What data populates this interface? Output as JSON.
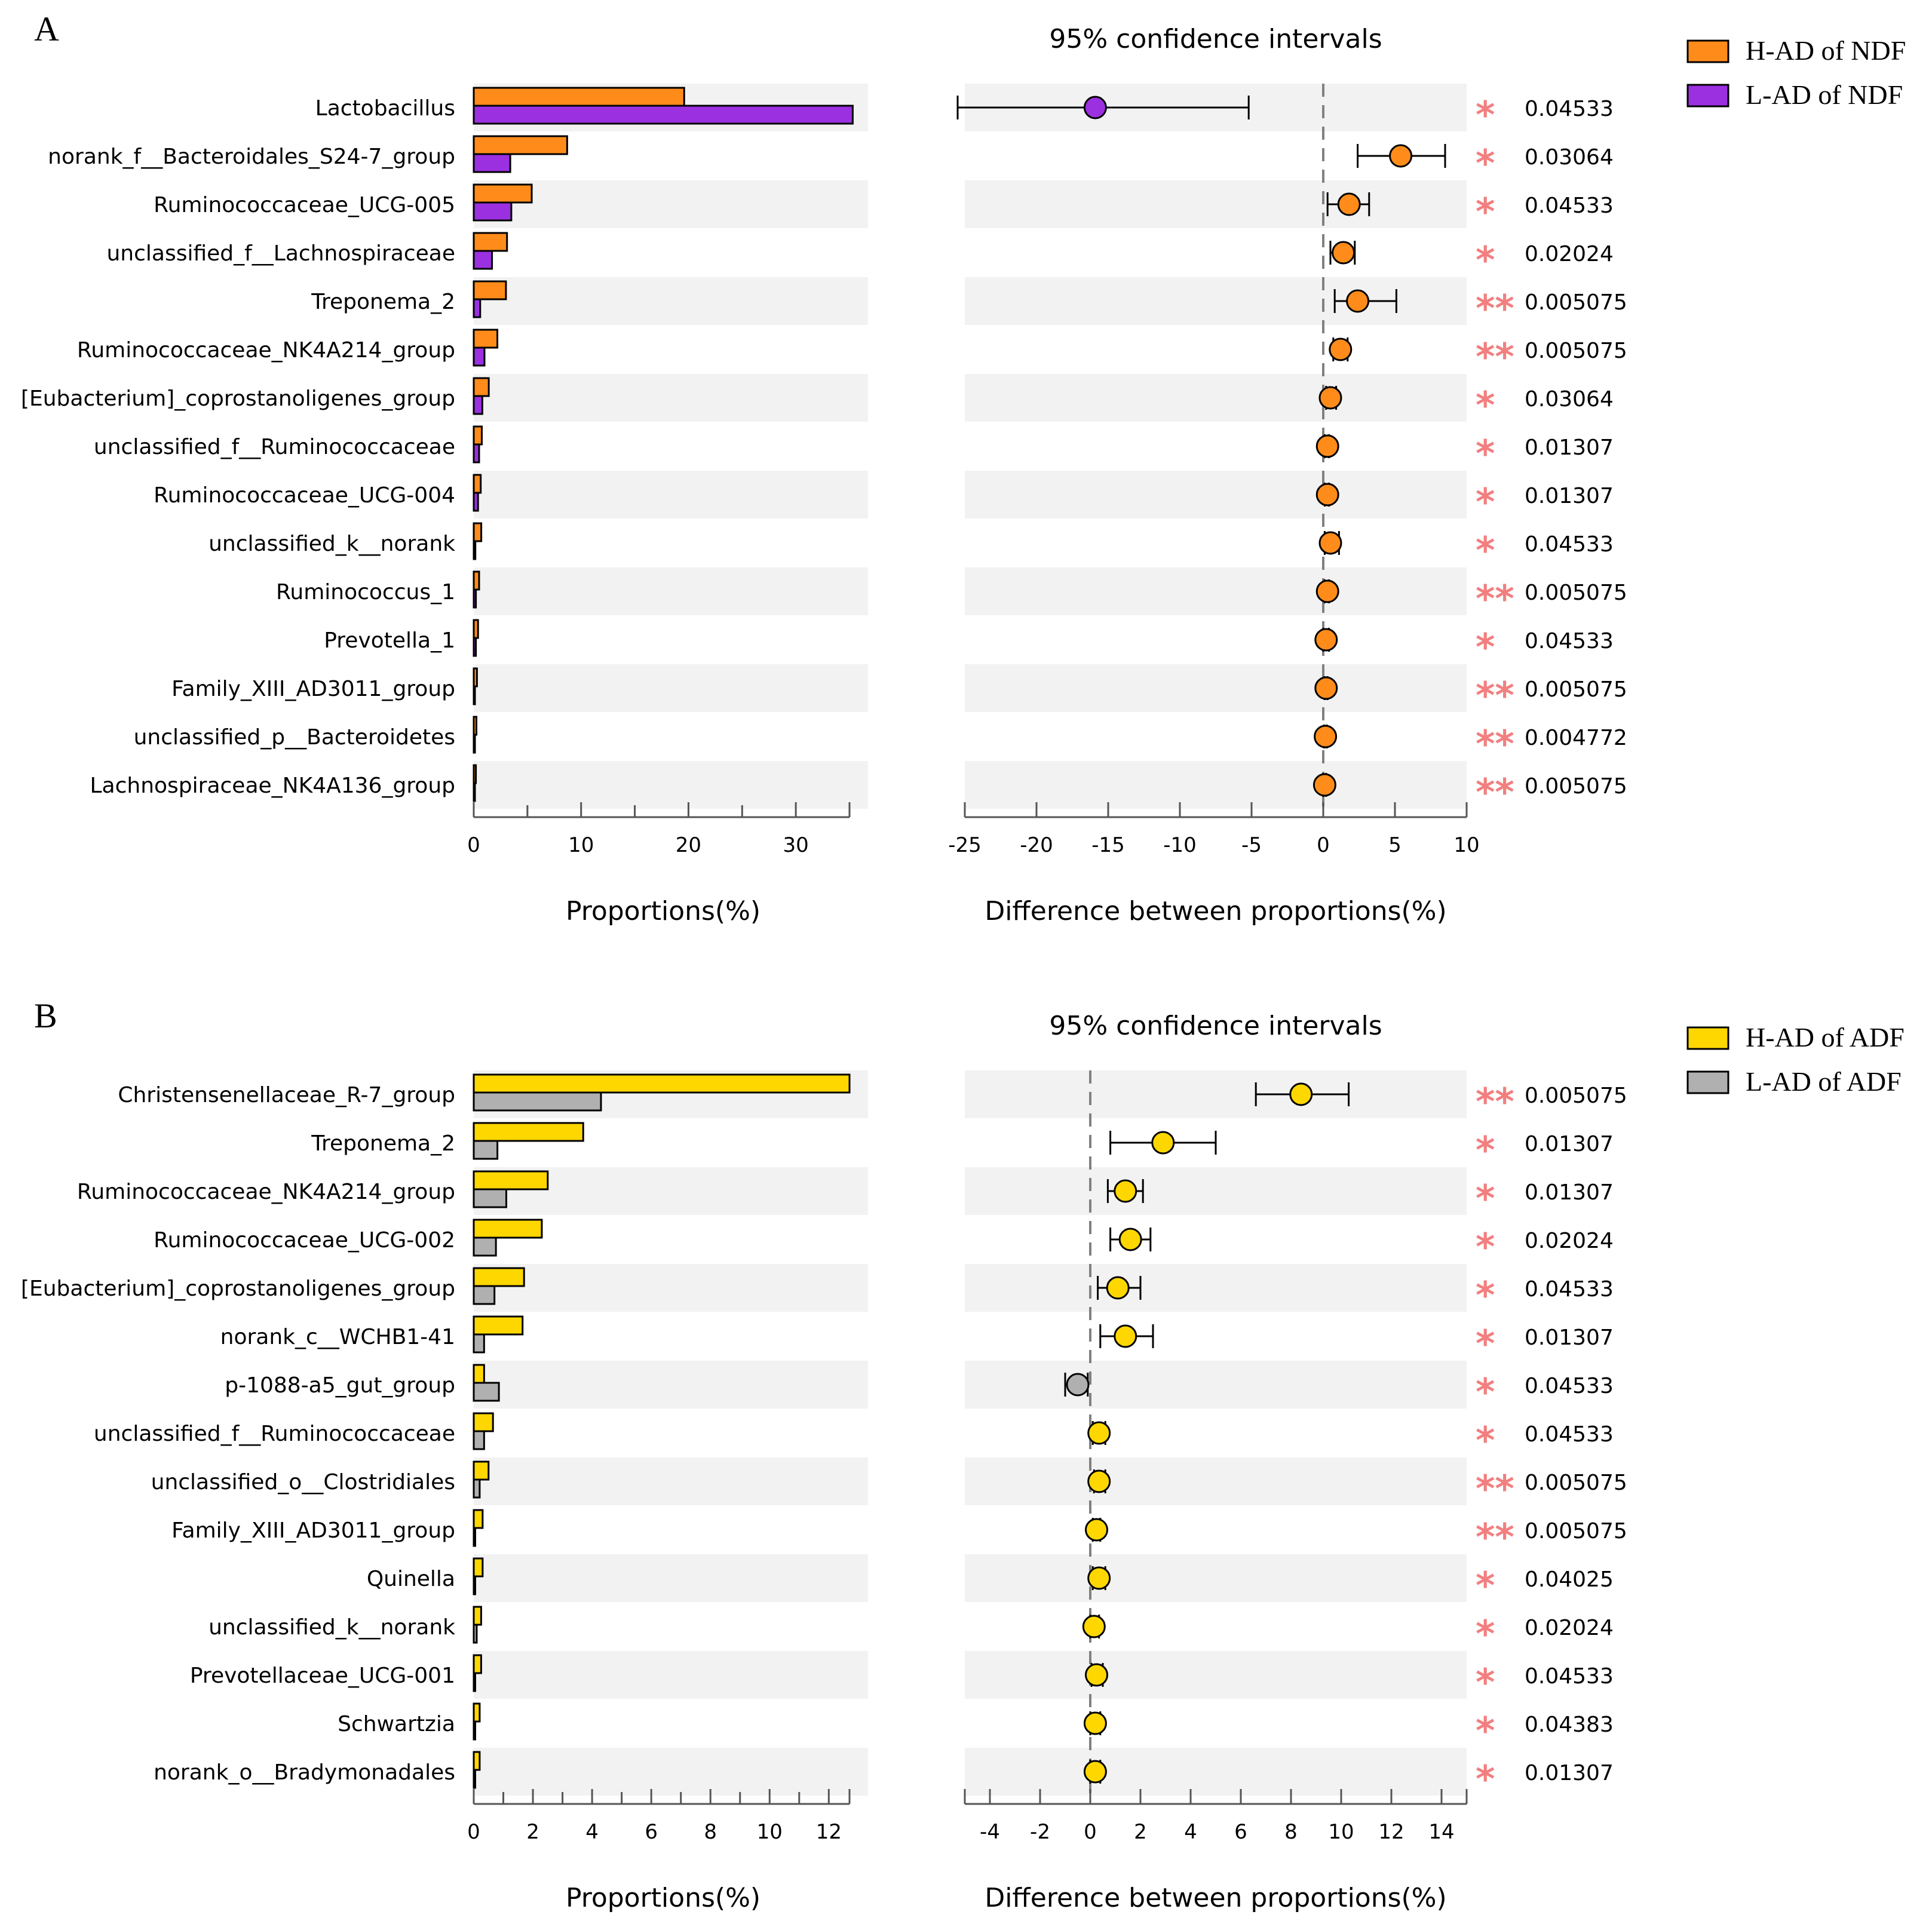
{
  "chart_data": [
    {
      "type": "bar+errorbar",
      "panel_label": "A",
      "title": "95% confidence intervals",
      "bar_xlabel": "Proportions(%)",
      "diff_xlabel": "Difference between proportions(%)",
      "bar_xlim": [
        0,
        35
      ],
      "bar_ticks": [
        0,
        10,
        20,
        30
      ],
      "diff_xlim": [
        -25,
        10
      ],
      "diff_ticks": [
        -25,
        -20,
        -15,
        -10,
        -5,
        0,
        5,
        10
      ],
      "legend": [
        {
          "label": "H-AD of NDF",
          "color": "#FF8C1A"
        },
        {
          "label": "L-AD of NDF",
          "color": "#9B30E0"
        }
      ],
      "categories": [
        "Lactobacillus",
        "norank_f__Bacteroidales_S24-7_group",
        "Ruminococcaceae_UCG-005",
        "unclassified_f__Lachnospiraceae",
        "Treponema_2",
        "Ruminococcaceae_NK4A214_group",
        "[Eubacterium]_coprostanoligenes_group",
        "unclassified_f__Ruminococcaceae",
        "Ruminococcaceae_UCG-004",
        "unclassified_k__norank",
        "Ruminococcus_1",
        "Prevotella_1",
        "Family_XIII_AD3011_group",
        "unclassified_p__Bacteroidetes",
        "Lachnospiraceae_NK4A136_group"
      ],
      "series": [
        {
          "name": "H-AD of NDF",
          "values": [
            19.6,
            8.7,
            5.4,
            3.1,
            3.0,
            2.2,
            1.4,
            0.75,
            0.65,
            0.7,
            0.5,
            0.4,
            0.3,
            0.25,
            0.2
          ]
        },
        {
          "name": "L-AD of NDF",
          "values": [
            35.3,
            3.4,
            3.5,
            1.7,
            0.6,
            1.0,
            0.8,
            0.5,
            0.4,
            0.15,
            0.2,
            0.2,
            0.1,
            0.1,
            0.1
          ]
        }
      ],
      "differences": [
        {
          "mean": -15.9,
          "low": -25.5,
          "high": -5.2,
          "group": "L-AD of NDF"
        },
        {
          "mean": 5.4,
          "low": 2.4,
          "high": 8.5,
          "group": "H-AD of NDF"
        },
        {
          "mean": 1.8,
          "low": 0.3,
          "high": 3.2,
          "group": "H-AD of NDF"
        },
        {
          "mean": 1.4,
          "low": 0.5,
          "high": 2.2,
          "group": "H-AD of NDF"
        },
        {
          "mean": 2.4,
          "low": 0.8,
          "high": 5.1,
          "group": "H-AD of NDF"
        },
        {
          "mean": 1.2,
          "low": 0.7,
          "high": 1.7,
          "group": "H-AD of NDF"
        },
        {
          "mean": 0.5,
          "low": 0.2,
          "high": 0.9,
          "group": "H-AD of NDF"
        },
        {
          "mean": 0.3,
          "low": 0.1,
          "high": 0.4,
          "group": "H-AD of NDF"
        },
        {
          "mean": 0.3,
          "low": 0.1,
          "high": 0.4,
          "group": "H-AD of NDF"
        },
        {
          "mean": 0.5,
          "low": 0.1,
          "high": 1.1,
          "group": "H-AD of NDF"
        },
        {
          "mean": 0.3,
          "low": 0.1,
          "high": 0.4,
          "group": "H-AD of NDF"
        },
        {
          "mean": 0.2,
          "low": 0.0,
          "high": 0.4,
          "group": "H-AD of NDF"
        },
        {
          "mean": 0.2,
          "low": 0.1,
          "high": 0.3,
          "group": "H-AD of NDF"
        },
        {
          "mean": 0.15,
          "low": 0.05,
          "high": 0.25,
          "group": "H-AD of NDF"
        },
        {
          "mean": 0.1,
          "low": 0.0,
          "high": 0.2,
          "group": "H-AD of NDF"
        }
      ],
      "significance": [
        "*",
        "*",
        "*",
        "*",
        "**",
        "**",
        "*",
        "*",
        "*",
        "*",
        "**",
        "*",
        "**",
        "**",
        "**"
      ],
      "p_values": [
        "0.04533",
        "0.03064",
        "0.04533",
        "0.02024",
        "0.005075",
        "0.005075",
        "0.03064",
        "0.01307",
        "0.01307",
        "0.04533",
        "0.005075",
        "0.04533",
        "0.005075",
        "0.004772",
        "0.005075"
      ]
    },
    {
      "type": "bar+errorbar",
      "panel_label": "B",
      "title": "95% confidence intervals",
      "bar_xlabel": "Proportions(%)",
      "diff_xlabel": "Difference between proportions(%)",
      "bar_xlim": [
        0,
        12.7
      ],
      "bar_ticks": [
        0,
        2,
        4,
        6,
        8,
        10,
        12
      ],
      "diff_xlim": [
        -5,
        15
      ],
      "diff_ticks": [
        -4,
        -2,
        0,
        2,
        4,
        6,
        8,
        10,
        12,
        14
      ],
      "legend": [
        {
          "label": "H-AD of ADF",
          "color": "#FFD700"
        },
        {
          "label": "L-AD of ADF",
          "color": "#B0B0B0"
        }
      ],
      "categories": [
        "Christensenellaceae_R-7_group",
        "Treponema_2",
        "Ruminococcaceae_NK4A214_group",
        "Ruminococcaceae_UCG-002",
        "[Eubacterium]_coprostanoligenes_group",
        "norank_c__WCHB1-41",
        "p-1088-a5_gut_group",
        "unclassified_f__Ruminococcaceae",
        "unclassified_o__Clostridiales",
        "Family_XIII_AD3011_group",
        "Quinella",
        "unclassified_k__norank",
        "Prevotellaceae_UCG-001",
        "Schwartzia",
        "norank_o__Bradymonadales"
      ],
      "series": [
        {
          "name": "H-AD of ADF",
          "values": [
            12.7,
            3.7,
            2.5,
            2.3,
            1.7,
            1.65,
            0.35,
            0.65,
            0.5,
            0.3,
            0.3,
            0.25,
            0.25,
            0.2,
            0.2
          ]
        },
        {
          "name": "L-AD of ADF",
          "values": [
            4.3,
            0.8,
            1.1,
            0.75,
            0.7,
            0.35,
            0.85,
            0.35,
            0.2,
            0.05,
            0.05,
            0.1,
            0.05,
            0.05,
            0.05
          ]
        }
      ],
      "differences": [
        {
          "mean": 8.4,
          "low": 6.6,
          "high": 10.3,
          "group": "H-AD of ADF"
        },
        {
          "mean": 2.9,
          "low": 0.8,
          "high": 5.0,
          "group": "H-AD of ADF"
        },
        {
          "mean": 1.4,
          "low": 0.7,
          "high": 2.1,
          "group": "H-AD of ADF"
        },
        {
          "mean": 1.6,
          "low": 0.8,
          "high": 2.4,
          "group": "H-AD of ADF"
        },
        {
          "mean": 1.1,
          "low": 0.3,
          "high": 2.0,
          "group": "H-AD of ADF"
        },
        {
          "mean": 1.4,
          "low": 0.4,
          "high": 2.5,
          "group": "H-AD of ADF"
        },
        {
          "mean": -0.5,
          "low": -1.0,
          "high": -0.1,
          "group": "L-AD of ADF"
        },
        {
          "mean": 0.35,
          "low": 0.1,
          "high": 0.6,
          "group": "H-AD of ADF"
        },
        {
          "mean": 0.35,
          "low": 0.15,
          "high": 0.6,
          "group": "H-AD of ADF"
        },
        {
          "mean": 0.25,
          "low": 0.1,
          "high": 0.4,
          "group": "H-AD of ADF"
        },
        {
          "mean": 0.35,
          "low": 0.1,
          "high": 0.6,
          "group": "H-AD of ADF"
        },
        {
          "mean": 0.15,
          "low": 0.0,
          "high": 0.35,
          "group": "H-AD of ADF"
        },
        {
          "mean": 0.25,
          "low": 0.05,
          "high": 0.5,
          "group": "H-AD of ADF"
        },
        {
          "mean": 0.2,
          "low": 0.0,
          "high": 0.4,
          "group": "H-AD of ADF"
        },
        {
          "mean": 0.2,
          "low": 0.0,
          "high": 0.4,
          "group": "H-AD of ADF"
        }
      ],
      "significance": [
        "**",
        "*",
        "*",
        "*",
        "*",
        "*",
        "*",
        "*",
        "**",
        "**",
        "*",
        "*",
        "*",
        "*",
        "*"
      ],
      "p_values": [
        "0.005075",
        "0.01307",
        "0.01307",
        "0.02024",
        "0.04533",
        "0.01307",
        "0.04533",
        "0.04533",
        "0.005075",
        "0.005075",
        "0.04025",
        "0.02024",
        "0.04533",
        "0.04383",
        "0.01307"
      ]
    }
  ]
}
